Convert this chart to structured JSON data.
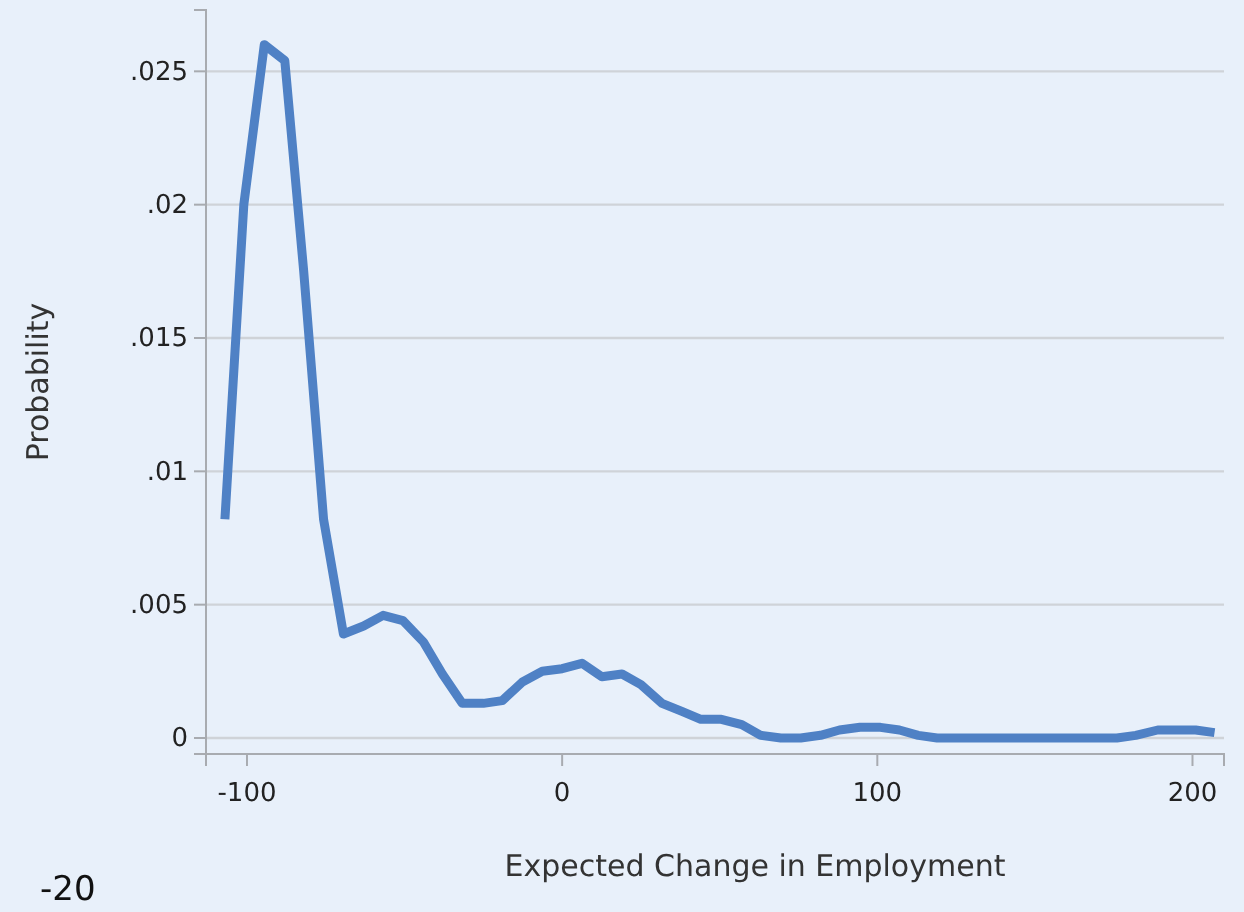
{
  "chart_data": {
    "type": "line",
    "xlabel": "Expected Change in Employment",
    "ylabel": "Probability",
    "annotations": [
      "-20"
    ],
    "x": [
      -107,
      -101,
      -94.5,
      -88,
      -82,
      -75.7,
      -69.4,
      -63,
      -56.8,
      -50.5,
      -44,
      -38,
      -31.7,
      -25,
      -19,
      -12.6,
      -6.3,
      0,
      6.3,
      12.6,
      19,
      25,
      31.7,
      38,
      44,
      50.5,
      57,
      63,
      69.4,
      75.7,
      82,
      88,
      94.5,
      101,
      107,
      113,
      119,
      126,
      132,
      138,
      145,
      151,
      157,
      164,
      170,
      176,
      182,
      189,
      195,
      201,
      207
    ],
    "series": [
      {
        "color": "#4f81c5",
        "values": [
          0.0082,
          0.02,
          0.026,
          0.0254,
          0.0175,
          0.0082,
          0.0039,
          0.0042,
          0.0046,
          0.0044,
          0.0036,
          0.0024,
          0.0013,
          0.0013,
          0.0014,
          0.0021,
          0.0025,
          0.0026,
          0.0028,
          0.0023,
          0.0024,
          0.002,
          0.0013,
          0.001,
          0.0007,
          0.0007,
          0.0005,
          0.0001,
          0.0,
          0.0,
          0.0001,
          0.0003,
          0.0004,
          0.0004,
          0.0003,
          0.0001,
          0.0,
          0.0,
          0.0,
          0.0,
          0.0,
          0.0,
          0.0,
          0.0,
          0.0,
          0.0,
          0.0001,
          0.0003,
          0.0003,
          0.0003,
          0.0002
        ]
      }
    ],
    "xlim": [
      -113,
      210
    ],
    "ylim": [
      -0.0006,
      0.0273
    ],
    "xticks": [
      -100,
      0,
      100,
      200
    ],
    "yticks": [
      {
        "value": 0,
        "label": "0"
      },
      {
        "value": 0.005,
        "label": ".005"
      },
      {
        "value": 0.01,
        "label": ".01"
      },
      {
        "value": 0.015,
        "label": ".015"
      },
      {
        "value": 0.02,
        "label": ".02"
      },
      {
        "value": 0.025,
        "label": ".025"
      }
    ],
    "grid": "y",
    "marker": "none",
    "line_style": "solid"
  }
}
